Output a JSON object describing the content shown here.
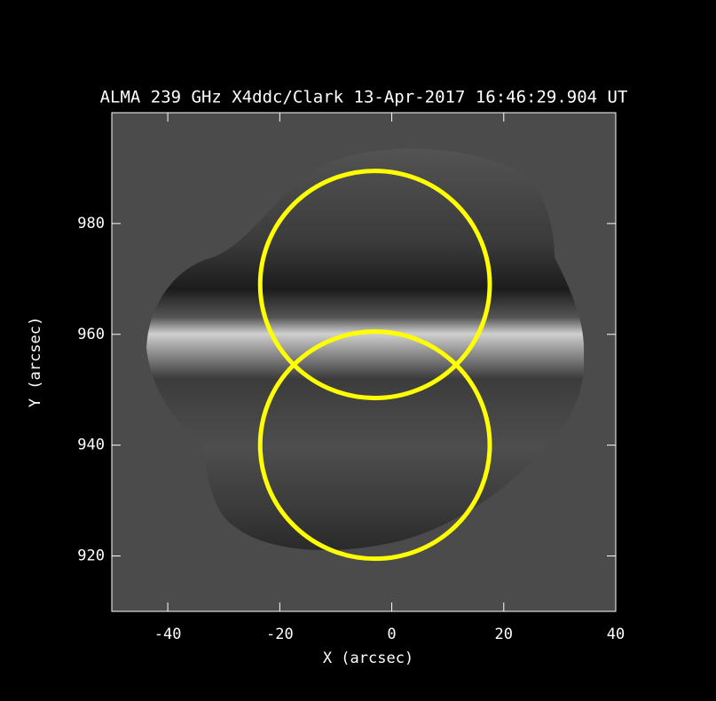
{
  "chart_data": {
    "type": "image",
    "title": "ALMA 239 GHz X4ddc/Clark 13-Apr-2017 16:46:29.904 UT",
    "x_label": "X (arcsec)",
    "y_label": "Y (arcsec)",
    "xlim": [
      -50,
      40
    ],
    "ylim": [
      910,
      1000
    ],
    "xticks": [
      -40,
      -20,
      0,
      20,
      40
    ],
    "yticks": [
      920,
      940,
      960,
      980
    ],
    "circles": [
      {
        "x": -3,
        "y": 969,
        "r": 20.5,
        "color": "#ffff00"
      },
      {
        "x": -3,
        "y": 940,
        "r": 20.5,
        "color": "#ffff00"
      }
    ]
  }
}
